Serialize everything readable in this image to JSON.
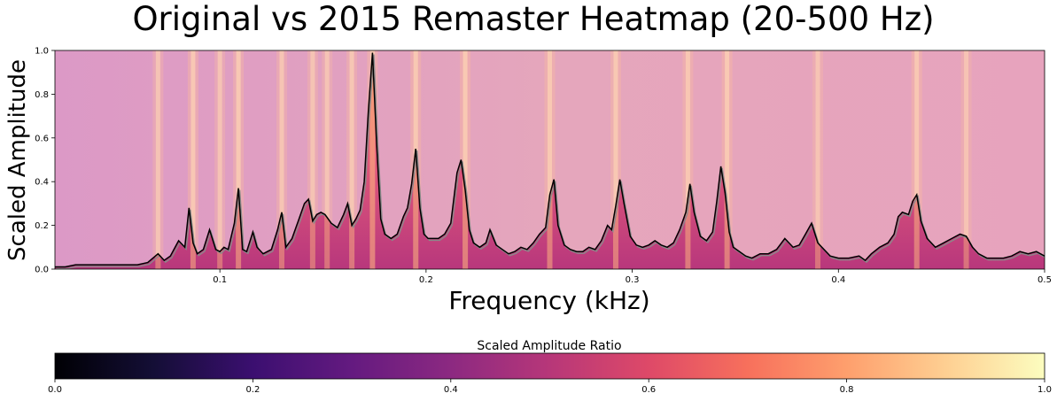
{
  "chart_data": [
    {
      "type": "heatmap",
      "title": "Original vs 2015 Remaster Heatmap (20-500 Hz)",
      "xlabel": "Frequency (kHz)",
      "ylabel": "Scaled Amplitude",
      "xlim": [
        0.02,
        0.5
      ],
      "ylim": [
        0.0,
        1.0
      ],
      "x_ticks": [
        "0.1",
        "0.2",
        "0.3",
        "0.4",
        "0.5"
      ],
      "y_ticks": [
        "0.0",
        "0.2",
        "0.4",
        "0.6",
        "0.8",
        "1.0"
      ],
      "grid": false,
      "colormap": "magma",
      "series": [
        {
          "x": [
            0.02,
            0.025,
            0.03,
            0.04,
            0.05,
            0.06,
            0.065,
            0.07,
            0.073,
            0.076,
            0.08,
            0.083,
            0.085,
            0.087,
            0.089,
            0.092,
            0.095,
            0.098,
            0.1,
            0.102,
            0.104,
            0.107,
            0.109,
            0.111,
            0.113,
            0.116,
            0.118,
            0.121,
            0.125,
            0.128,
            0.13,
            0.132,
            0.135,
            0.138,
            0.141,
            0.143,
            0.145,
            0.147,
            0.149,
            0.151,
            0.154,
            0.157,
            0.16,
            0.162,
            0.164,
            0.166,
            0.168,
            0.17,
            0.172,
            0.174,
            0.176,
            0.178,
            0.18,
            0.183,
            0.186,
            0.189,
            0.191,
            0.193,
            0.195,
            0.197,
            0.199,
            0.201,
            0.203,
            0.206,
            0.209,
            0.212,
            0.215,
            0.217,
            0.219,
            0.221,
            0.223,
            0.226,
            0.229,
            0.231,
            0.234,
            0.237,
            0.24,
            0.243,
            0.246,
            0.249,
            0.252,
            0.255,
            0.258,
            0.26,
            0.262,
            0.264,
            0.267,
            0.27,
            0.273,
            0.276,
            0.279,
            0.282,
            0.285,
            0.288,
            0.29,
            0.292,
            0.294,
            0.296,
            0.299,
            0.302,
            0.305,
            0.308,
            0.311,
            0.314,
            0.317,
            0.32,
            0.323,
            0.326,
            0.328,
            0.33,
            0.333,
            0.336,
            0.339,
            0.341,
            0.343,
            0.345,
            0.347,
            0.349,
            0.352,
            0.355,
            0.358,
            0.362,
            0.366,
            0.37,
            0.374,
            0.378,
            0.381,
            0.384,
            0.387,
            0.39,
            0.393,
            0.396,
            0.4,
            0.405,
            0.41,
            0.413,
            0.416,
            0.42,
            0.424,
            0.427,
            0.429,
            0.431,
            0.434,
            0.436,
            0.438,
            0.44,
            0.443,
            0.447,
            0.451,
            0.455,
            0.459,
            0.462,
            0.465,
            0.468,
            0.472,
            0.476,
            0.48,
            0.484,
            0.488,
            0.492,
            0.496,
            0.5
          ],
          "y": [
            0.01,
            0.01,
            0.02,
            0.02,
            0.02,
            0.02,
            0.03,
            0.07,
            0.04,
            0.06,
            0.13,
            0.1,
            0.28,
            0.12,
            0.07,
            0.09,
            0.18,
            0.09,
            0.08,
            0.1,
            0.09,
            0.21,
            0.37,
            0.09,
            0.08,
            0.17,
            0.1,
            0.07,
            0.09,
            0.18,
            0.26,
            0.1,
            0.14,
            0.22,
            0.3,
            0.32,
            0.22,
            0.25,
            0.26,
            0.25,
            0.21,
            0.19,
            0.25,
            0.3,
            0.2,
            0.23,
            0.27,
            0.4,
            0.72,
            0.99,
            0.58,
            0.23,
            0.16,
            0.14,
            0.16,
            0.24,
            0.28,
            0.39,
            0.55,
            0.28,
            0.16,
            0.14,
            0.14,
            0.14,
            0.16,
            0.21,
            0.44,
            0.5,
            0.36,
            0.18,
            0.12,
            0.1,
            0.12,
            0.18,
            0.11,
            0.09,
            0.07,
            0.08,
            0.1,
            0.09,
            0.12,
            0.16,
            0.19,
            0.34,
            0.41,
            0.2,
            0.11,
            0.09,
            0.08,
            0.08,
            0.1,
            0.09,
            0.13,
            0.2,
            0.18,
            0.29,
            0.41,
            0.3,
            0.15,
            0.11,
            0.1,
            0.11,
            0.13,
            0.11,
            0.1,
            0.12,
            0.18,
            0.26,
            0.39,
            0.26,
            0.15,
            0.13,
            0.17,
            0.31,
            0.47,
            0.35,
            0.17,
            0.1,
            0.08,
            0.06,
            0.05,
            0.07,
            0.07,
            0.09,
            0.14,
            0.1,
            0.11,
            0.16,
            0.21,
            0.12,
            0.09,
            0.06,
            0.05,
            0.05,
            0.06,
            0.04,
            0.07,
            0.1,
            0.12,
            0.16,
            0.24,
            0.26,
            0.25,
            0.31,
            0.34,
            0.22,
            0.14,
            0.1,
            0.12,
            0.14,
            0.16,
            0.15,
            0.1,
            0.07,
            0.05,
            0.05,
            0.05,
            0.06,
            0.08,
            0.07,
            0.08,
            0.06
          ]
        }
      ],
      "heat_bands": [
        {
          "x": 0.07,
          "v": 0.75
        },
        {
          "x": 0.087,
          "v": 0.88
        },
        {
          "x": 0.1,
          "v": 0.7
        },
        {
          "x": 0.109,
          "v": 0.9
        },
        {
          "x": 0.13,
          "v": 0.75
        },
        {
          "x": 0.145,
          "v": 0.72
        },
        {
          "x": 0.152,
          "v": 0.7
        },
        {
          "x": 0.164,
          "v": 0.8
        },
        {
          "x": 0.174,
          "v": 1.0
        },
        {
          "x": 0.195,
          "v": 0.92
        },
        {
          "x": 0.219,
          "v": 0.94
        },
        {
          "x": 0.26,
          "v": 0.88
        },
        {
          "x": 0.292,
          "v": 0.86
        },
        {
          "x": 0.327,
          "v": 0.85
        },
        {
          "x": 0.346,
          "v": 0.9
        },
        {
          "x": 0.39,
          "v": 0.7
        },
        {
          "x": 0.438,
          "v": 0.85
        },
        {
          "x": 0.462,
          "v": 0.7
        }
      ],
      "colorbar": {
        "label": "Scaled Amplitude Ratio",
        "range": [
          0.0,
          1.0
        ],
        "ticks": [
          "0.0",
          "0.2",
          "0.4",
          "0.6",
          "0.8",
          "1.0"
        ]
      }
    }
  ]
}
